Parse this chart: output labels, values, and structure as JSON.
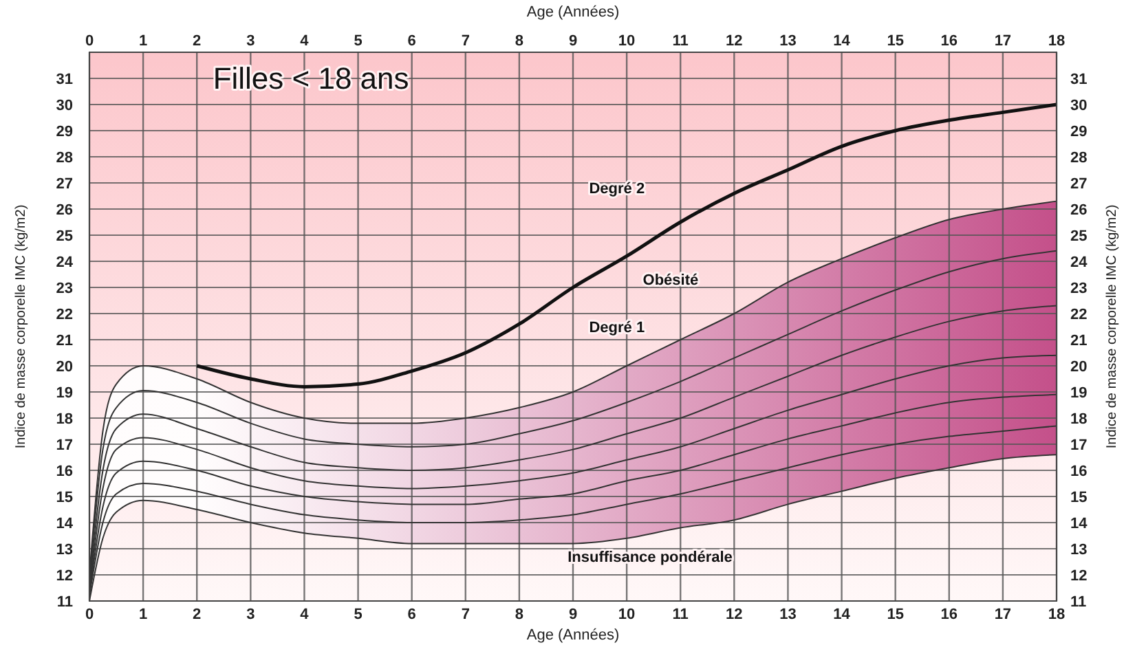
{
  "chart_data": {
    "type": "line",
    "xlabel": "Age (Années)",
    "x2label": "Age (Années)",
    "ylabel": "Indice de masse corporelle IMC (kg/m2)",
    "y2label": "Indice de masse corporelle IMC (kg/m2)",
    "xlim": [
      0,
      18
    ],
    "xticks": [
      0,
      1,
      2,
      3,
      4,
      5,
      6,
      7,
      8,
      9,
      10,
      11,
      12,
      13,
      14,
      15,
      16,
      17,
      18
    ],
    "x2lim": [
      0,
      18
    ],
    "x2ticks": [
      0,
      1,
      2,
      3,
      4,
      5,
      6,
      7,
      8,
      9,
      10,
      11,
      12,
      13,
      14,
      15,
      16,
      17,
      18
    ],
    "ylim": [
      11,
      32
    ],
    "yticks": [
      11,
      12,
      13,
      14,
      15,
      16,
      17,
      18,
      19,
      20,
      21,
      22,
      23,
      24,
      25,
      26,
      27,
      28,
      29,
      30,
      31
    ],
    "y2lim": [
      11,
      32
    ],
    "y2ticks": [
      11,
      12,
      13,
      14,
      15,
      16,
      17,
      18,
      19,
      20,
      21,
      22,
      23,
      24,
      25,
      26,
      27,
      28,
      29,
      30,
      31
    ],
    "grid": true,
    "marker": "none",
    "line_style": "solid",
    "x": [
      0,
      0.25,
      0.5,
      1,
      2,
      3,
      4,
      5,
      6,
      7,
      8,
      9,
      10,
      11,
      12,
      13,
      14,
      15,
      16,
      17,
      18
    ],
    "series": [
      {
        "color": "#333333",
        "values": [
          12.0,
          17.5,
          19.3,
          20.0,
          19.5,
          18.6,
          18.0,
          17.8,
          17.8,
          18.0,
          18.4,
          19.0,
          20.0,
          21.0,
          22.0,
          23.2,
          24.1,
          24.9,
          25.6,
          26.0,
          26.3
        ]
      },
      {
        "color": "#333333",
        "values": [
          11.8,
          16.8,
          18.4,
          19.05,
          18.6,
          17.8,
          17.2,
          17.0,
          16.9,
          17.0,
          17.4,
          17.9,
          18.6,
          19.4,
          20.3,
          21.2,
          22.1,
          22.9,
          23.6,
          24.1,
          24.4
        ]
      },
      {
        "color": "#333333",
        "values": [
          11.6,
          16.0,
          17.6,
          18.15,
          17.6,
          16.9,
          16.3,
          16.1,
          16.0,
          16.1,
          16.4,
          16.8,
          17.4,
          18.0,
          18.8,
          19.6,
          20.4,
          21.1,
          21.7,
          22.1,
          22.3
        ]
      },
      {
        "color": "#333333",
        "values": [
          11.4,
          15.3,
          16.8,
          17.25,
          16.8,
          16.1,
          15.6,
          15.4,
          15.3,
          15.4,
          15.6,
          15.9,
          16.4,
          16.9,
          17.6,
          18.3,
          18.9,
          19.5,
          20.0,
          20.3,
          20.4
        ],
        "lower": [
          11.0,
          13.4,
          14.4,
          14.85,
          14.5,
          14.0,
          13.6,
          13.4,
          13.2,
          13.2,
          13.2,
          13.2,
          13.4,
          13.8,
          14.1,
          14.7,
          15.2,
          15.7,
          16.1,
          16.45,
          16.6
        ],
        "upper": [
          12.0,
          17.5,
          19.3,
          20.0,
          19.5,
          18.6,
          18.0,
          17.8,
          17.8,
          18.0,
          18.4,
          19.0,
          20.0,
          21.0,
          22.0,
          23.2,
          24.1,
          24.9,
          25.6,
          26.0,
          26.3
        ]
      },
      {
        "color": "#333333",
        "values": [
          11.3,
          14.6,
          15.9,
          16.35,
          16.0,
          15.4,
          15.0,
          14.8,
          14.7,
          14.7,
          14.9,
          15.1,
          15.6,
          16.0,
          16.6,
          17.2,
          17.7,
          18.2,
          18.6,
          18.8,
          18.9
        ]
      },
      {
        "color": "#333333",
        "values": [
          11.2,
          14.0,
          15.1,
          15.5,
          15.2,
          14.7,
          14.3,
          14.1,
          14.0,
          14.0,
          14.1,
          14.3,
          14.7,
          15.1,
          15.6,
          16.1,
          16.6,
          17.0,
          17.3,
          17.5,
          17.7
        ]
      },
      {
        "color": "#333333",
        "values": [
          11.0,
          13.4,
          14.4,
          14.85,
          14.5,
          14.0,
          13.6,
          13.4,
          13.2,
          13.2,
          13.2,
          13.2,
          13.4,
          13.8,
          14.1,
          14.7,
          15.2,
          15.7,
          16.1,
          16.45,
          16.6
        ]
      },
      {
        "color": "#111111",
        "x": [
          2,
          3,
          4,
          5,
          6,
          7,
          8,
          9,
          10,
          11,
          12,
          13,
          14,
          15,
          16,
          17,
          18
        ],
        "values": [
          20.0,
          19.5,
          19.2,
          19.3,
          19.8,
          20.5,
          21.6,
          23.0,
          24.2,
          25.5,
          26.6,
          27.5,
          28.4,
          29.0,
          29.4,
          29.7,
          30.0
        ]
      }
    ],
    "annotations": [
      "Filles < 18 ans",
      "Degré 2",
      "Obésité",
      "Degré 1",
      "Insuffisance pondérale"
    ]
  }
}
